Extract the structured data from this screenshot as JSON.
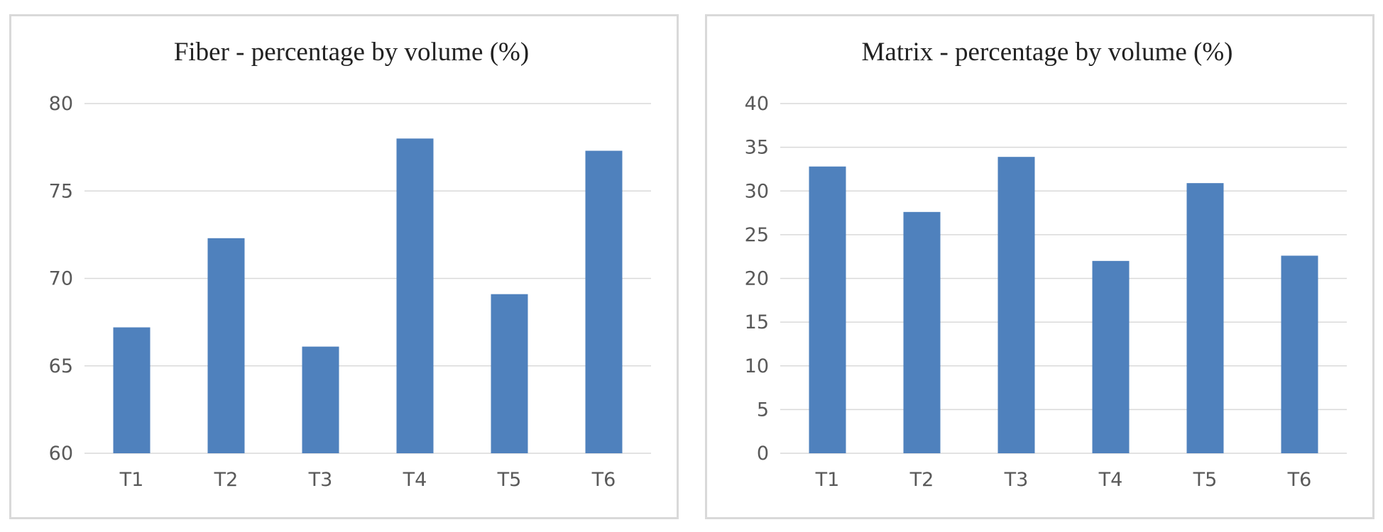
{
  "chart_data": [
    {
      "type": "bar",
      "title": "Fiber - percentage by volume (%)",
      "categories": [
        "T1",
        "T2",
        "T3",
        "T4",
        "T5",
        "T6"
      ],
      "values": [
        67.2,
        72.3,
        66.1,
        78.0,
        69.1,
        77.3
      ],
      "ylim": [
        60,
        80
      ],
      "yticks": [
        "60",
        "65",
        "70",
        "75",
        "80"
      ],
      "xlabel": "",
      "ylabel": "",
      "grid": true,
      "legend": "none",
      "bar_color": "#4f81bd",
      "grid_color": "#d9d9d9"
    },
    {
      "type": "bar",
      "title": "Matrix - percentage by volume (%)",
      "categories": [
        "T1",
        "T2",
        "T3",
        "T4",
        "T5",
        "T6"
      ],
      "values": [
        32.8,
        27.6,
        33.9,
        22.0,
        30.9,
        22.6
      ],
      "ylim": [
        0,
        40
      ],
      "yticks": [
        "0",
        "5",
        "10",
        "15",
        "20",
        "25",
        "30",
        "35",
        "40"
      ],
      "xlabel": "",
      "ylabel": "",
      "grid": true,
      "legend": "none",
      "bar_color": "#4f81bd",
      "grid_color": "#d9d9d9"
    }
  ]
}
